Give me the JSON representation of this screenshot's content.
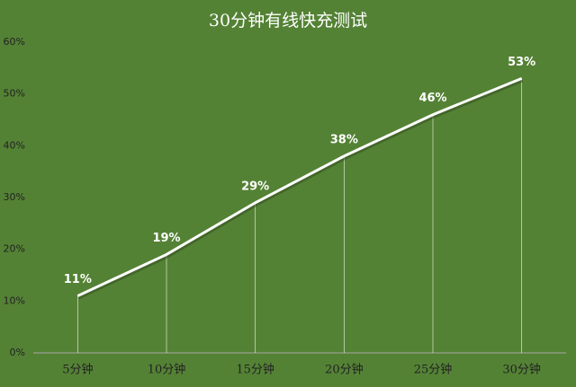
{
  "chart_data": {
    "type": "line",
    "title": "30分钟有线快充测试",
    "categories": [
      "5分钟",
      "10分钟",
      "15分钟",
      "20分钟",
      "25分钟",
      "30分钟"
    ],
    "values": [
      11,
      19,
      29,
      38,
      46,
      53
    ],
    "value_labels": [
      "11%",
      "19%",
      "29%",
      "38%",
      "46%",
      "53%"
    ],
    "color": "#ffffff",
    "ylim": [
      0,
      60
    ],
    "yticks": [
      {
        "value": 0,
        "label": "0%"
      },
      {
        "value": 10,
        "label": "10%"
      },
      {
        "value": 20,
        "label": "20%"
      },
      {
        "value": 30,
        "label": "30%"
      },
      {
        "value": 40,
        "label": "40%"
      },
      {
        "value": 50,
        "label": "50%"
      },
      {
        "value": 60,
        "label": "60%"
      }
    ]
  }
}
